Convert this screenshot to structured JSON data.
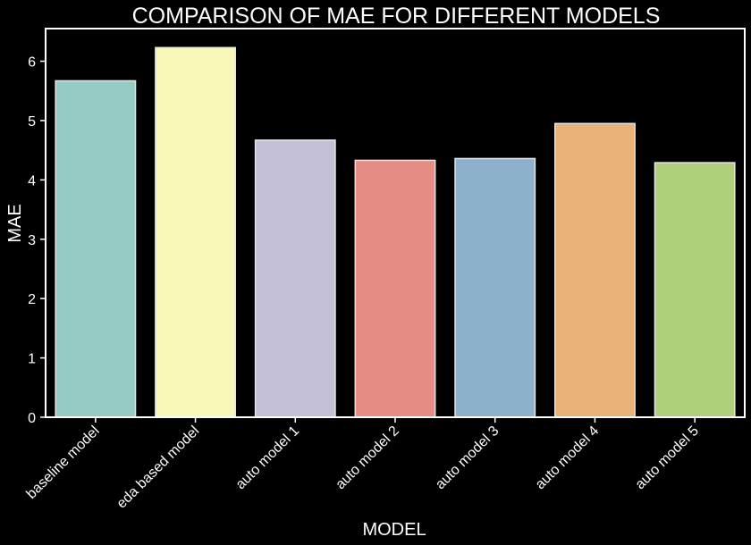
{
  "chart_data": {
    "type": "bar",
    "title": "COMPARISON OF MAE FOR DIFFERENT MODELS",
    "xlabel": "MODEL",
    "ylabel": "MAE",
    "categories": [
      "baseline model",
      "eda based model",
      "auto model 1",
      "auto model 2",
      "auto model 3",
      "auto model 4",
      "auto model 5"
    ],
    "values": [
      5.67,
      6.23,
      4.67,
      4.33,
      4.36,
      4.95,
      4.29
    ],
    "colors": [
      "#96cbc3",
      "#f8f8bb",
      "#c2bfd6",
      "#e78c85",
      "#8eb1cb",
      "#eab277",
      "#afcf7a"
    ],
    "ylim": [
      0,
      6.55
    ],
    "yticks": [
      0,
      1,
      2,
      3,
      4,
      5,
      6
    ],
    "grid": false,
    "legend": "none",
    "background": "#000000",
    "bar_edge_color": "#e6e6e6",
    "axis_color": "#ffffff",
    "text_color": "#ffffff"
  }
}
